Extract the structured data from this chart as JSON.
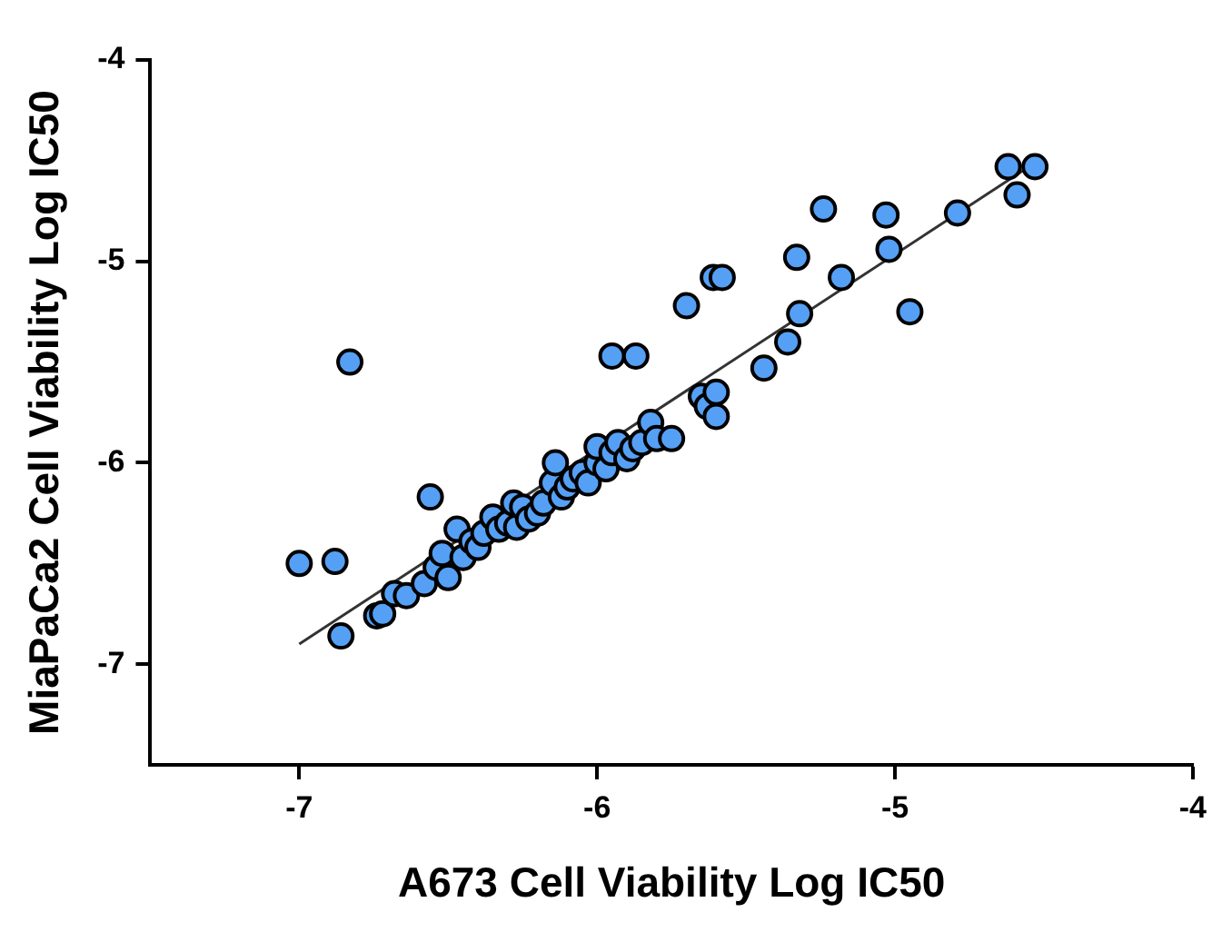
{
  "chart_data": {
    "type": "scatter",
    "xlabel": "A673 Cell Viability Log IC50",
    "ylabel": "MiaPaCa2 Cell Viability Log IC50",
    "xlim": [
      -7.5,
      -4
    ],
    "xticks": [
      -7,
      -6,
      -5,
      -4
    ],
    "ylim": [
      -7.5,
      -4
    ],
    "yticks": [
      -7,
      -6,
      -5,
      -4
    ],
    "grid": false,
    "legend": false,
    "marker": "circle",
    "series": [
      {
        "type": "line",
        "color": "#333333",
        "marker": "none",
        "x": [
          -7.0,
          -4.55
        ],
        "values": [
          -6.9,
          -4.53
        ]
      },
      {
        "color": "#55a0f5",
        "x": [
          -7.0,
          -6.88,
          -6.83,
          -6.86,
          -6.74,
          -6.72,
          -6.68,
          -6.64,
          -6.58,
          -6.56,
          -6.54,
          -6.52,
          -6.5,
          -6.47,
          -6.45,
          -6.42,
          -6.4,
          -6.38,
          -6.35,
          -6.33,
          -6.3,
          -6.28,
          -6.27,
          -6.25,
          -6.23,
          -6.2,
          -6.18,
          -6.15,
          -6.14,
          -6.12,
          -6.1,
          -6.08,
          -6.05,
          -6.03,
          -6.0,
          -6.0,
          -5.97,
          -5.95,
          -5.93,
          -5.9,
          -5.88,
          -5.85,
          -5.82,
          -5.8,
          -5.75,
          -5.95,
          -5.87,
          -5.7,
          -5.65,
          -5.63,
          -5.6,
          -5.6,
          -5.61,
          -5.58,
          -5.44,
          -5.36,
          -5.33,
          -5.32,
          -5.24,
          -5.18,
          -5.03,
          -5.02,
          -4.95,
          -4.79,
          -4.62,
          -4.59,
          -4.53
        ],
        "values": [
          -6.5,
          -6.49,
          -5.5,
          -6.86,
          -6.76,
          -6.75,
          -6.65,
          -6.66,
          -6.6,
          -6.17,
          -6.52,
          -6.45,
          -6.57,
          -6.33,
          -6.47,
          -6.39,
          -6.42,
          -6.35,
          -6.27,
          -6.33,
          -6.3,
          -6.2,
          -6.32,
          -6.22,
          -6.28,
          -6.25,
          -6.2,
          -6.1,
          -6.0,
          -6.17,
          -6.12,
          -6.08,
          -6.05,
          -6.1,
          -6.0,
          -5.92,
          -6.03,
          -5.95,
          -5.9,
          -5.98,
          -5.93,
          -5.9,
          -5.8,
          -5.88,
          -5.88,
          -5.47,
          -5.47,
          -5.22,
          -5.67,
          -5.72,
          -5.65,
          -5.77,
          -5.08,
          -5.08,
          -5.53,
          -5.4,
          -4.98,
          -5.26,
          -4.74,
          -5.08,
          -4.77,
          -4.94,
          -5.25,
          -4.76,
          -4.53,
          -4.67,
          -4.53
        ]
      }
    ]
  }
}
